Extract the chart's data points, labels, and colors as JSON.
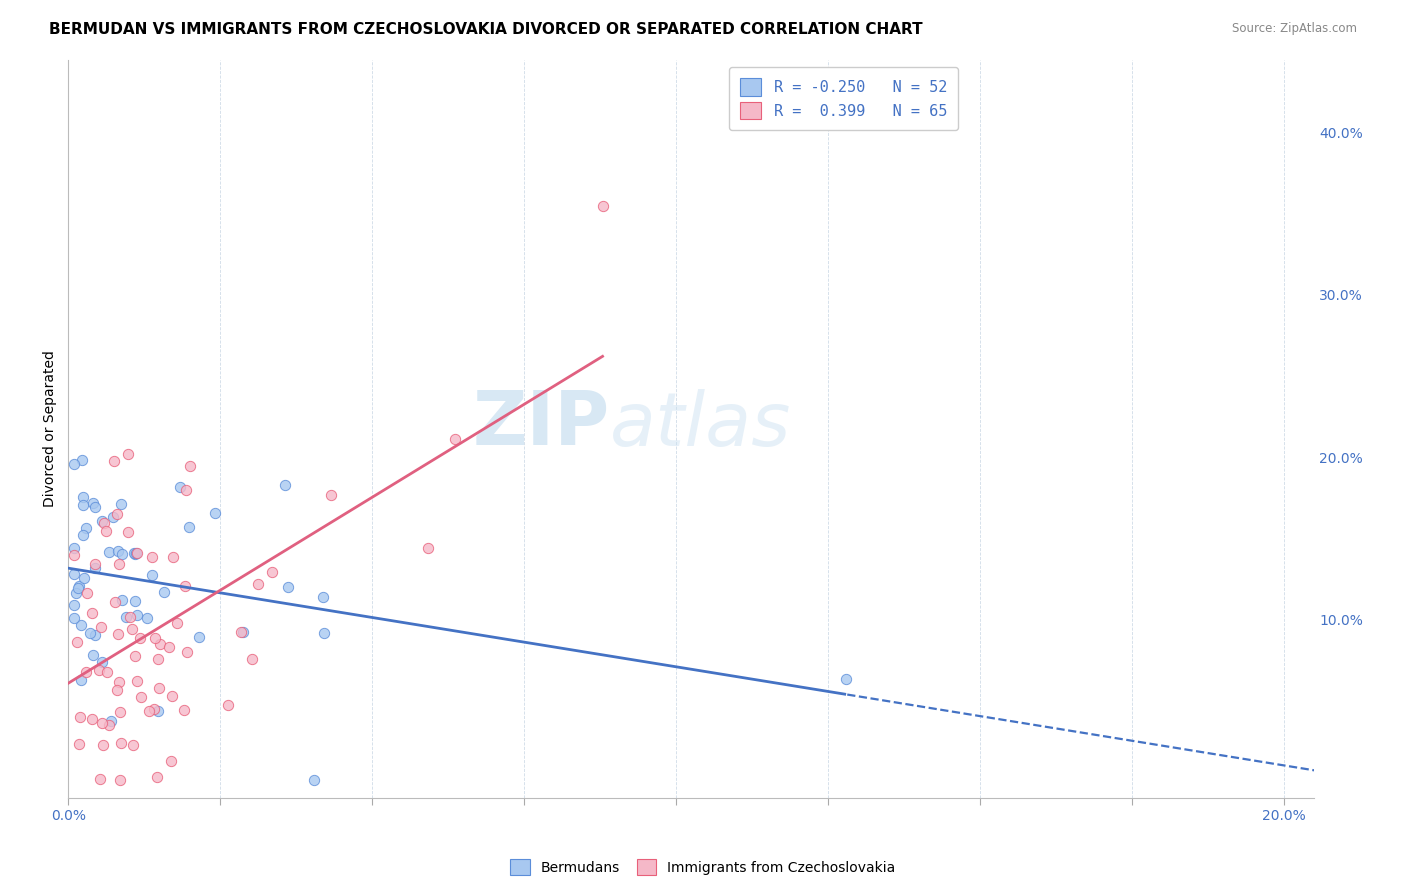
{
  "title": "BERMUDAN VS IMMIGRANTS FROM CZECHOSLOVAKIA DIVORCED OR SEPARATED CORRELATION CHART",
  "source": "Source: ZipAtlas.com",
  "ylabel": "Divorced or Separated",
  "xlim": [
    0.0,
    0.205
  ],
  "ylim": [
    -0.01,
    0.445
  ],
  "x_ticks": [
    0.0,
    0.025,
    0.05,
    0.075,
    0.1,
    0.125,
    0.15,
    0.175,
    0.2
  ],
  "x_tick_labels": [
    "0.0%",
    "",
    "",
    "",
    "",
    "",
    "",
    "",
    "20.0%"
  ],
  "y_ticks_right": [
    0.0,
    0.1,
    0.2,
    0.3,
    0.4
  ],
  "y_tick_labels_right": [
    "",
    "10.0%",
    "20.0%",
    "30.0%",
    "40.0%"
  ],
  "blue_fill": "#A8C8F0",
  "blue_edge": "#5B8DD9",
  "pink_fill": "#F5B8C8",
  "pink_edge": "#E8607A",
  "blue_line": "#4472C4",
  "pink_line": "#E06080",
  "watermark_color": "#C8DFF0",
  "blue_intercept": 0.13,
  "blue_slope": -0.5,
  "pink_intercept": 0.075,
  "pink_slope": 0.9,
  "blue_N": 52,
  "pink_N": 65,
  "legend_labels": [
    "R = -0.250   N = 52",
    "R =  0.399   N = 65"
  ],
  "bottom_labels": [
    "Bermudans",
    "Immigrants from Czechoslovakia"
  ]
}
